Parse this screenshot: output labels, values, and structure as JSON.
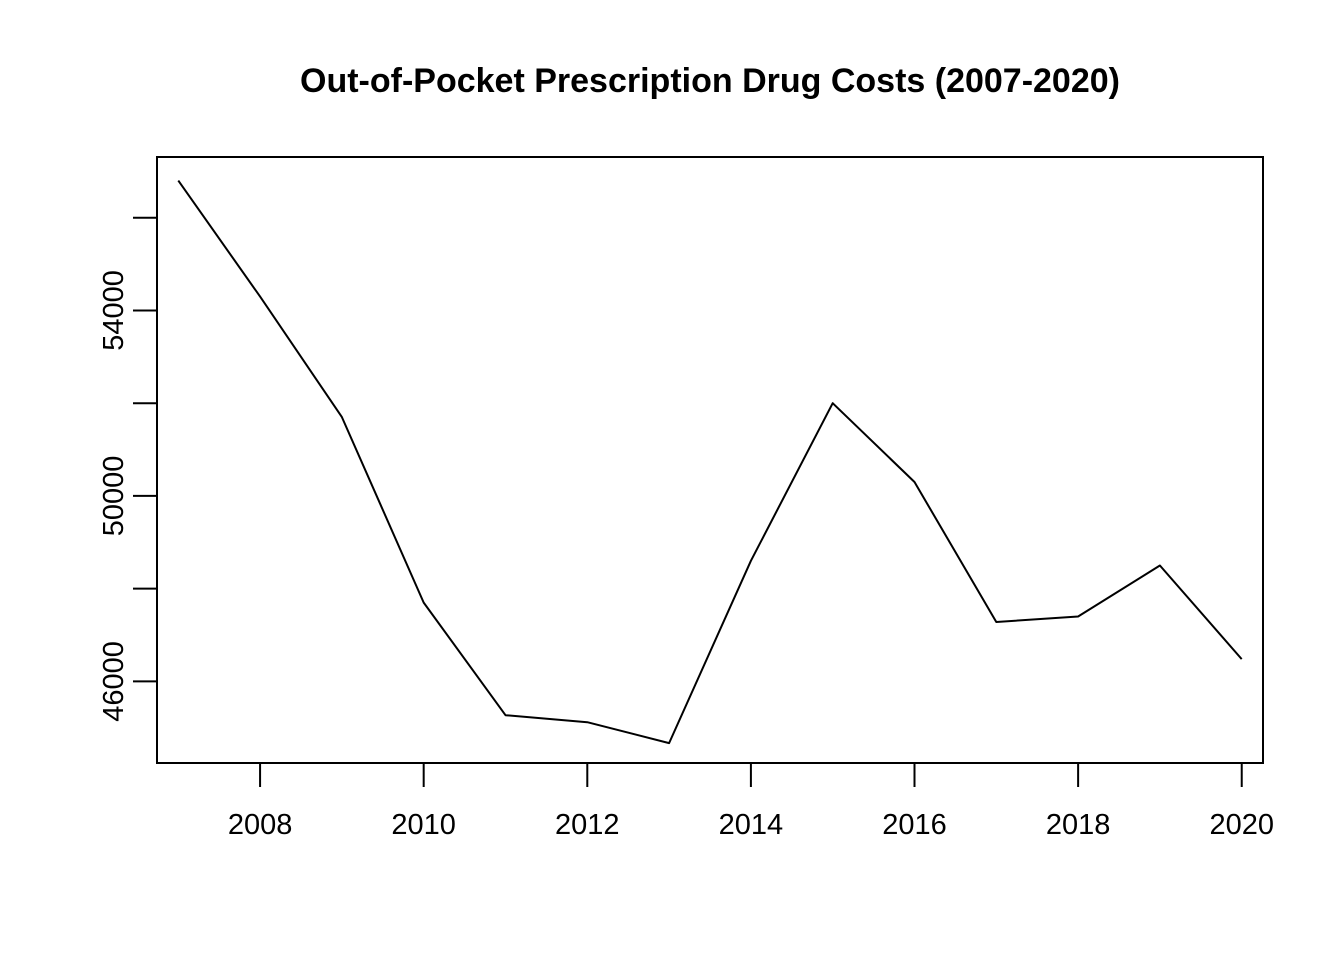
{
  "chart_data": {
    "type": "line",
    "title": "Out-of-Pocket Prescription Drug Costs (2007-2020)",
    "xlabel": "",
    "ylabel": "",
    "x": [
      2007,
      2008,
      2009,
      2010,
      2011,
      2012,
      2013,
      2014,
      2015,
      2016,
      2017,
      2018,
      2019,
      2020
    ],
    "series": [
      {
        "color": "#000000",
        "values": [
          56800,
          54300,
          51700,
          47700,
          45270,
          45120,
          44670,
          48600,
          52000,
          50300,
          47280,
          47400,
          48500,
          46480
        ]
      }
    ],
    "xlim": [
      2006.74,
      2020.26
    ],
    "ylim": [
      44240,
      57310
    ],
    "x_ticks": [
      2008,
      2010,
      2012,
      2014,
      2016,
      2018,
      2020
    ],
    "x_tick_labels": [
      "2008",
      "2010",
      "2012",
      "2014",
      "2016",
      "2018",
      "2020"
    ],
    "y_ticks": [
      46000,
      48000,
      50000,
      52000,
      54000,
      56000
    ],
    "y_tick_labels": [
      "46000",
      "",
      "50000",
      "",
      "54000",
      ""
    ],
    "grid": false,
    "legend": "none"
  }
}
